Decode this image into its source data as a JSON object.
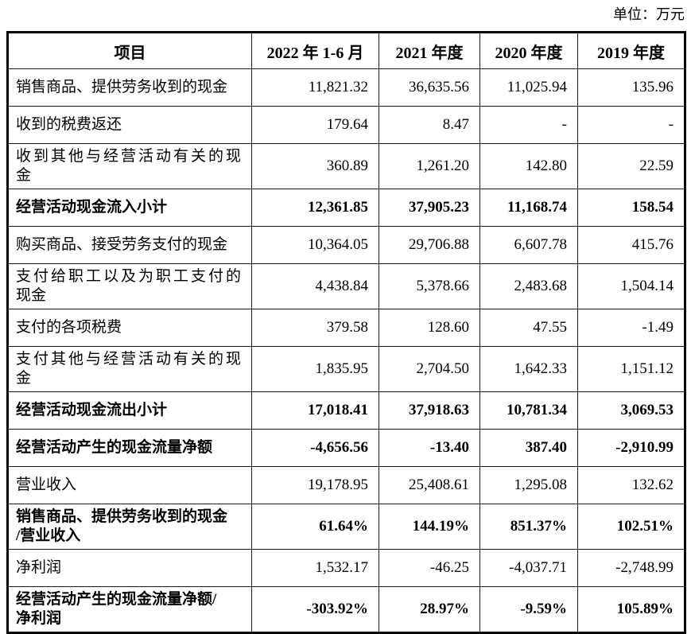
{
  "unit_label": "单位：万元",
  "table": {
    "columns": [
      "项目",
      "2022 年 1-6 月",
      "2021 年度",
      "2020 年度",
      "2019 年度"
    ],
    "rows": [
      {
        "label": "销售商品、提供劳务收到的现金",
        "bold": false,
        "values": [
          "11,821.32",
          "36,635.56",
          "11,025.94",
          "135.96"
        ]
      },
      {
        "label": "收到的税费返还",
        "bold": false,
        "values": [
          "179.64",
          "8.47",
          "-",
          "-"
        ]
      },
      {
        "label": "收到其他与经营活动有关的现\n金",
        "bold": false,
        "values": [
          "360.89",
          "1,261.20",
          "142.80",
          "22.59"
        ]
      },
      {
        "label": "经营活动现金流入小计",
        "bold": true,
        "values": [
          "12,361.85",
          "37,905.23",
          "11,168.74",
          "158.54"
        ]
      },
      {
        "label": "购买商品、接受劳务支付的现金",
        "bold": false,
        "values": [
          "10,364.05",
          "29,706.88",
          "6,607.78",
          "415.76"
        ]
      },
      {
        "label": "支付给职工以及为职工支付的\n现金",
        "bold": false,
        "values": [
          "4,438.84",
          "5,378.66",
          "2,483.68",
          "1,504.14"
        ]
      },
      {
        "label": "支付的各项税费",
        "bold": false,
        "values": [
          "379.58",
          "128.60",
          "47.55",
          "-1.49"
        ]
      },
      {
        "label": "支付其他与经营活动有关的现\n金",
        "bold": false,
        "values": [
          "1,835.95",
          "2,704.50",
          "1,642.33",
          "1,151.12"
        ]
      },
      {
        "label": "经营活动现金流出小计",
        "bold": true,
        "values": [
          "17,018.41",
          "37,918.63",
          "10,781.34",
          "3,069.53"
        ]
      },
      {
        "label": "经营活动产生的现金流量净额",
        "bold": true,
        "values": [
          "-4,656.56",
          "-13.40",
          "387.40",
          "-2,910.99"
        ]
      },
      {
        "label": "营业收入",
        "bold": false,
        "values": [
          "19,178.95",
          "25,408.61",
          "1,295.08",
          "132.62"
        ]
      },
      {
        "label": "销售商品、提供劳务收到的现金\n/营业收入",
        "bold": true,
        "values": [
          "61.64%",
          "144.19%",
          "851.37%",
          "102.51%"
        ]
      },
      {
        "label": "净利润",
        "bold": false,
        "values": [
          "1,532.17",
          "-46.25",
          "-4,037.71",
          "-2,748.99"
        ]
      },
      {
        "label": "经营活动产生的现金流量净额/\n净利润",
        "bold": true,
        "values": [
          "-303.92%",
          "28.97%",
          "-9.59%",
          "105.89%"
        ]
      }
    ]
  }
}
